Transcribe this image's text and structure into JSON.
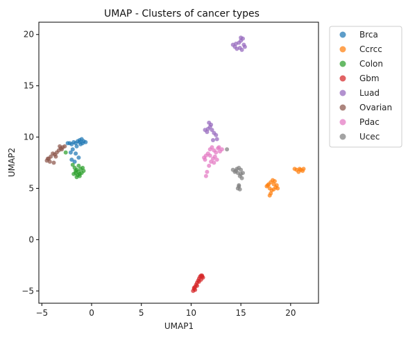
{
  "chart_data": {
    "type": "scatter",
    "title": "UMAP - Clusters of cancer types",
    "xlabel": "UMAP1",
    "ylabel": "UMAP2",
    "xlim": [
      -5.3,
      22.8
    ],
    "ylim": [
      -6.2,
      21.2
    ],
    "xticks": [
      -5,
      0,
      5,
      10,
      15,
      20
    ],
    "yticks": [
      -5,
      0,
      5,
      10,
      15,
      20
    ],
    "grid": false,
    "legend_position": "outside-top-right",
    "series": [
      {
        "name": "Brca",
        "color": "#1f77b4",
        "points": [
          [
            -2.4,
            9.4
          ],
          [
            -2.2,
            9.4
          ],
          [
            -2.0,
            9.3
          ],
          [
            -1.8,
            9.5
          ],
          [
            -1.6,
            9.4
          ],
          [
            -1.4,
            9.6
          ],
          [
            -1.2,
            9.7
          ],
          [
            -1.0,
            9.8
          ],
          [
            -0.8,
            9.6
          ],
          [
            -0.6,
            9.5
          ],
          [
            -1.1,
            9.3
          ],
          [
            -1.5,
            9.1
          ],
          [
            -1.9,
            8.8
          ],
          [
            -2.1,
            8.5
          ],
          [
            -1.6,
            8.4
          ],
          [
            -1.3,
            8.0
          ],
          [
            -2.0,
            7.8
          ],
          [
            -1.7,
            7.6
          ],
          [
            -1.2,
            9.5
          ],
          [
            -0.9,
            9.4
          ]
        ]
      },
      {
        "name": "Ccrcc",
        "color": "#ff7f0e",
        "points": [
          [
            17.6,
            5.2
          ],
          [
            17.8,
            5.4
          ],
          [
            18.0,
            5.6
          ],
          [
            18.2,
            5.8
          ],
          [
            18.4,
            5.7
          ],
          [
            17.9,
            5.0
          ],
          [
            18.1,
            4.8
          ],
          [
            18.3,
            4.9
          ],
          [
            18.5,
            5.1
          ],
          [
            18.6,
            5.3
          ],
          [
            18.7,
            5.0
          ],
          [
            17.7,
            5.3
          ],
          [
            18.0,
            4.5
          ],
          [
            17.9,
            4.3
          ],
          [
            18.3,
            5.4
          ],
          [
            20.4,
            6.9
          ],
          [
            20.6,
            6.8
          ],
          [
            20.8,
            6.6
          ],
          [
            21.0,
            6.8
          ],
          [
            21.2,
            6.7
          ],
          [
            21.3,
            6.9
          ],
          [
            20.9,
            6.9
          ]
        ]
      },
      {
        "name": "Colon",
        "color": "#2ca02c",
        "points": [
          [
            -1.9,
            7.3
          ],
          [
            -1.7,
            7.0
          ],
          [
            -1.5,
            6.8
          ],
          [
            -1.3,
            6.6
          ],
          [
            -1.1,
            6.9
          ],
          [
            -0.9,
            7.0
          ],
          [
            -1.0,
            6.5
          ],
          [
            -1.4,
            6.3
          ],
          [
            -1.2,
            6.2
          ],
          [
            -1.6,
            6.7
          ],
          [
            -1.8,
            6.4
          ],
          [
            -1.5,
            6.1
          ],
          [
            -1.2,
            6.4
          ],
          [
            -0.8,
            6.7
          ],
          [
            -1.3,
            7.2
          ],
          [
            -2.6,
            8.5
          ],
          [
            -1.6,
            6.5
          ]
        ]
      },
      {
        "name": "Gbm",
        "color": "#d62728",
        "points": [
          [
            10.2,
            -5.0
          ],
          [
            10.3,
            -4.8
          ],
          [
            10.4,
            -4.6
          ],
          [
            10.5,
            -4.4
          ],
          [
            10.6,
            -4.2
          ],
          [
            10.7,
            -4.0
          ],
          [
            10.8,
            -3.8
          ],
          [
            10.9,
            -3.6
          ],
          [
            11.0,
            -3.5
          ],
          [
            11.1,
            -3.6
          ],
          [
            11.2,
            -3.7
          ],
          [
            10.4,
            -4.9
          ],
          [
            10.6,
            -4.5
          ],
          [
            10.8,
            -4.1
          ],
          [
            11.0,
            -3.9
          ],
          [
            10.3,
            -4.7
          ],
          [
            11.1,
            -3.5
          ]
        ]
      },
      {
        "name": "Luad",
        "color": "#9467bd",
        "points": [
          [
            14.2,
            19.0
          ],
          [
            14.4,
            18.8
          ],
          [
            14.6,
            18.6
          ],
          [
            14.8,
            19.2
          ],
          [
            15.0,
            19.4
          ],
          [
            15.2,
            19.6
          ],
          [
            15.3,
            19.0
          ],
          [
            15.4,
            18.8
          ],
          [
            15.1,
            18.5
          ],
          [
            14.9,
            18.7
          ],
          [
            14.5,
            19.1
          ],
          [
            15.0,
            19.7
          ],
          [
            11.7,
            10.8
          ],
          [
            11.9,
            11.0
          ],
          [
            12.1,
            10.7
          ],
          [
            12.3,
            10.4
          ],
          [
            12.5,
            10.2
          ],
          [
            12.6,
            9.8
          ],
          [
            11.6,
            10.5
          ],
          [
            11.8,
            11.4
          ],
          [
            12.0,
            11.2
          ],
          [
            11.4,
            10.7
          ],
          [
            12.2,
            9.7
          ]
        ]
      },
      {
        "name": "Ovarian",
        "color": "#8c564b",
        "points": [
          [
            -4.5,
            7.7
          ],
          [
            -4.3,
            7.9
          ],
          [
            -4.1,
            8.1
          ],
          [
            -3.9,
            8.4
          ],
          [
            -3.7,
            8.3
          ],
          [
            -3.5,
            8.5
          ],
          [
            -3.3,
            8.7
          ],
          [
            -3.1,
            8.9
          ],
          [
            -2.9,
            9.0
          ],
          [
            -2.7,
            9.1
          ],
          [
            -3.2,
            9.1
          ],
          [
            -4.2,
            7.6
          ],
          [
            -3.8,
            7.5
          ],
          [
            -4.4,
            7.9
          ],
          [
            -3.6,
            8.1
          ],
          [
            -3.0,
            8.8
          ]
        ]
      },
      {
        "name": "Pdac",
        "color": "#e377c2",
        "points": [
          [
            11.3,
            8.0
          ],
          [
            11.5,
            8.2
          ],
          [
            11.7,
            8.4
          ],
          [
            11.9,
            8.8
          ],
          [
            12.1,
            9.0
          ],
          [
            12.3,
            8.7
          ],
          [
            12.5,
            8.5
          ],
          [
            12.7,
            8.9
          ],
          [
            12.9,
            8.6
          ],
          [
            13.1,
            8.8
          ],
          [
            12.4,
            8.1
          ],
          [
            12.2,
            7.9
          ],
          [
            12.0,
            7.6
          ],
          [
            11.8,
            7.2
          ],
          [
            11.6,
            6.6
          ],
          [
            11.5,
            6.2
          ],
          [
            12.3,
            7.5
          ],
          [
            11.9,
            8.2
          ],
          [
            12.6,
            7.8
          ],
          [
            12.8,
            9.0
          ],
          [
            11.4,
            7.8
          ]
        ]
      },
      {
        "name": "Ucec",
        "color": "#7f7f7f",
        "points": [
          [
            14.2,
            6.8
          ],
          [
            14.4,
            6.6
          ],
          [
            14.6,
            6.9
          ],
          [
            14.8,
            7.0
          ],
          [
            15.0,
            6.8
          ],
          [
            15.2,
            6.5
          ],
          [
            14.9,
            6.2
          ],
          [
            14.7,
            6.5
          ],
          [
            15.1,
            6.0
          ],
          [
            14.8,
            5.3
          ],
          [
            14.7,
            5.0
          ],
          [
            14.9,
            4.9
          ],
          [
            14.8,
            5.2
          ],
          [
            13.6,
            8.8
          ],
          [
            14.5,
            6.7
          ],
          [
            15.0,
            6.4
          ]
        ]
      }
    ]
  }
}
